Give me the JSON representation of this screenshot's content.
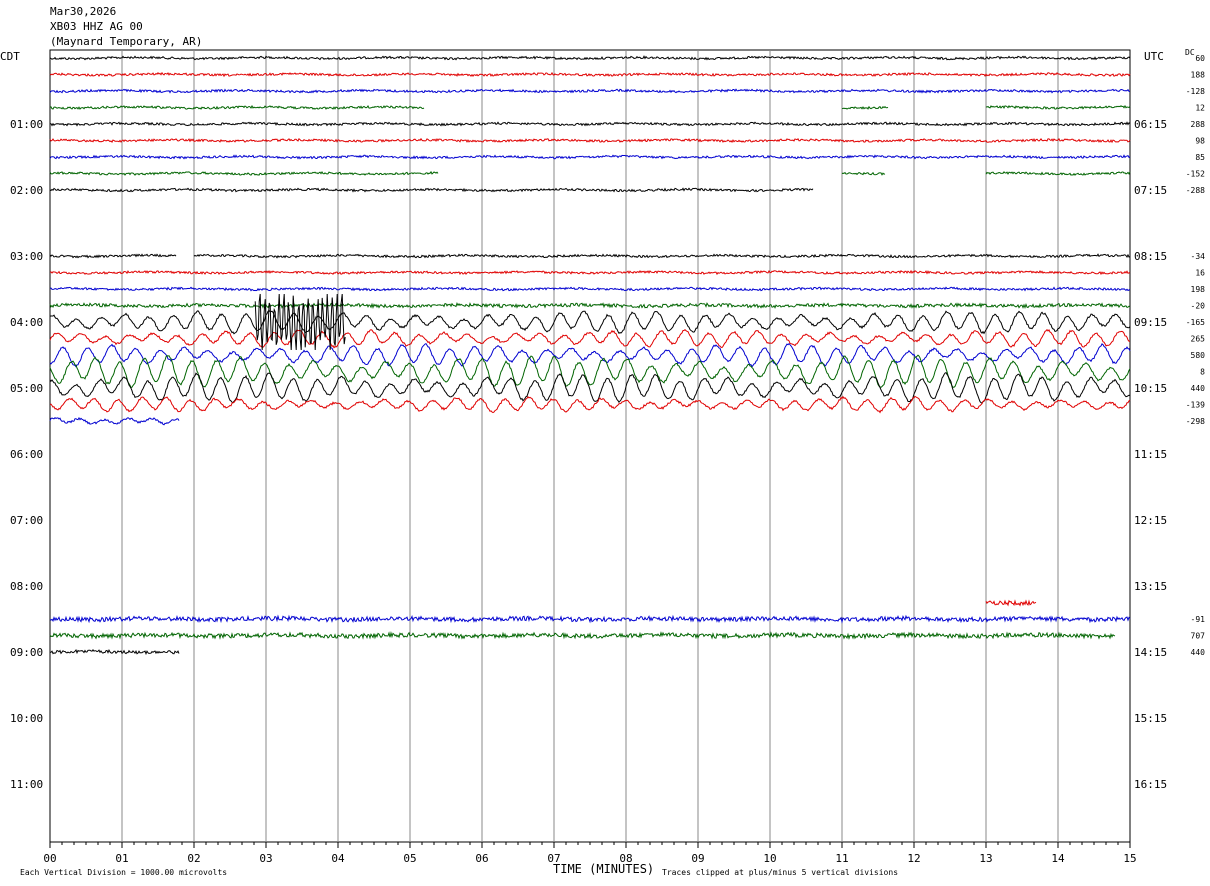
{
  "header": {
    "date": "Mar30,2026",
    "station": "XB03 HHZ AG 00",
    "location": "(Maynard Temporary, AR)"
  },
  "axis": {
    "left_label": "CDT",
    "right_label": "UTC",
    "dc_label": "DC",
    "x_title": "TIME (MINUTES)",
    "footer_left": "Each Vertical Division = 1000.00 microvolts",
    "footer_right": "Traces clipped at plus/minus 5 vertical divisions"
  },
  "colors": [
    "#000000",
    "#e00000",
    "#0000d0",
    "#006400"
  ],
  "chart_data": {
    "type": "line",
    "title": "",
    "xlabel": "TIME (MINUTES)",
    "ylabel": "",
    "xlim": [
      0,
      15
    ],
    "x_ticks": [
      "00",
      "01",
      "02",
      "03",
      "04",
      "05",
      "06",
      "07",
      "08",
      "09",
      "10",
      "11",
      "12",
      "13",
      "14",
      "15"
    ],
    "grid": true,
    "left_hour_labels": [
      "01:00",
      "02:00",
      "03:00",
      "04:00",
      "05:00",
      "06:00",
      "07:00",
      "08:00",
      "09:00",
      "10:00",
      "11:00"
    ],
    "right_hour_labels": [
      "06:15",
      "07:15",
      "08:15",
      "09:15",
      "10:15",
      "11:15",
      "12:15",
      "13:15",
      "14:15",
      "15:15",
      "16:15"
    ],
    "traces": [
      {
        "row": 0,
        "segments": [
          [
            0,
            15
          ]
        ],
        "amp": 1,
        "dc": "60"
      },
      {
        "row": 1,
        "segments": [
          [
            0,
            15
          ]
        ],
        "amp": 1,
        "dc": "188"
      },
      {
        "row": 2,
        "segments": [
          [
            0,
            15
          ]
        ],
        "amp": 1,
        "dc": "-128"
      },
      {
        "row": 3,
        "segments": [
          [
            0,
            5.2
          ],
          [
            11,
            11.65
          ],
          [
            13,
            15
          ]
        ],
        "amp": 1,
        "dc": "12"
      },
      {
        "row": 4,
        "segments": [
          [
            0,
            15
          ]
        ],
        "amp": 1,
        "dc": "288"
      },
      {
        "row": 5,
        "segments": [
          [
            0,
            15
          ]
        ],
        "amp": 1,
        "dc": "98"
      },
      {
        "row": 6,
        "segments": [
          [
            0,
            15
          ]
        ],
        "amp": 1,
        "dc": "85"
      },
      {
        "row": 7,
        "segments": [
          [
            0,
            5.4
          ],
          [
            11,
            11.6
          ],
          [
            13,
            15
          ]
        ],
        "amp": 1,
        "dc": "-152"
      },
      {
        "row": 8,
        "segments": [
          [
            0,
            10.6
          ]
        ],
        "amp": 1,
        "dc": "-288"
      },
      {
        "row": 12,
        "segments": [
          [
            0,
            1.75
          ],
          [
            2,
            15
          ]
        ],
        "amp": 1,
        "dc": "-34"
      },
      {
        "row": 13,
        "segments": [
          [
            0,
            15
          ]
        ],
        "amp": 1,
        "dc": "16"
      },
      {
        "row": 14,
        "segments": [
          [
            0,
            15
          ]
        ],
        "amp": 1,
        "dc": "198"
      },
      {
        "row": 15,
        "segments": [
          [
            0,
            15
          ]
        ],
        "amp": 1.5,
        "dc": "-20"
      },
      {
        "row": 16,
        "segments": [
          [
            0,
            15
          ]
        ],
        "amp": 9,
        "dc": "-165"
      },
      {
        "row": 17,
        "segments": [
          [
            0,
            15
          ]
        ],
        "amp": 7,
        "dc": "265"
      },
      {
        "row": 18,
        "segments": [
          [
            0,
            15
          ]
        ],
        "amp": 9,
        "dc": "580"
      },
      {
        "row": 19,
        "segments": [
          [
            0,
            15
          ]
        ],
        "amp": 13,
        "dc": "8"
      },
      {
        "row": 20,
        "segments": [
          [
            0,
            15
          ]
        ],
        "amp": 12,
        "dc": "440"
      },
      {
        "row": 21,
        "segments": [
          [
            0,
            15
          ]
        ],
        "amp": 6,
        "dc": "-139"
      },
      {
        "row": 22,
        "segments": [
          [
            0,
            1.8
          ]
        ],
        "amp": 4,
        "dc": "-298"
      },
      {
        "row": 33,
        "segments": [
          [
            13,
            13.7
          ]
        ],
        "amp": 2,
        "dc": ""
      },
      {
        "row": 34,
        "segments": [
          [
            0,
            15
          ]
        ],
        "amp": 2,
        "dc": "-91"
      },
      {
        "row": 35,
        "segments": [
          [
            0,
            14.8
          ]
        ],
        "amp": 2,
        "dc": "707"
      },
      {
        "row": 36,
        "segments": [
          [
            0,
            1.8
          ]
        ],
        "amp": 1.5,
        "dc": "440"
      }
    ]
  }
}
